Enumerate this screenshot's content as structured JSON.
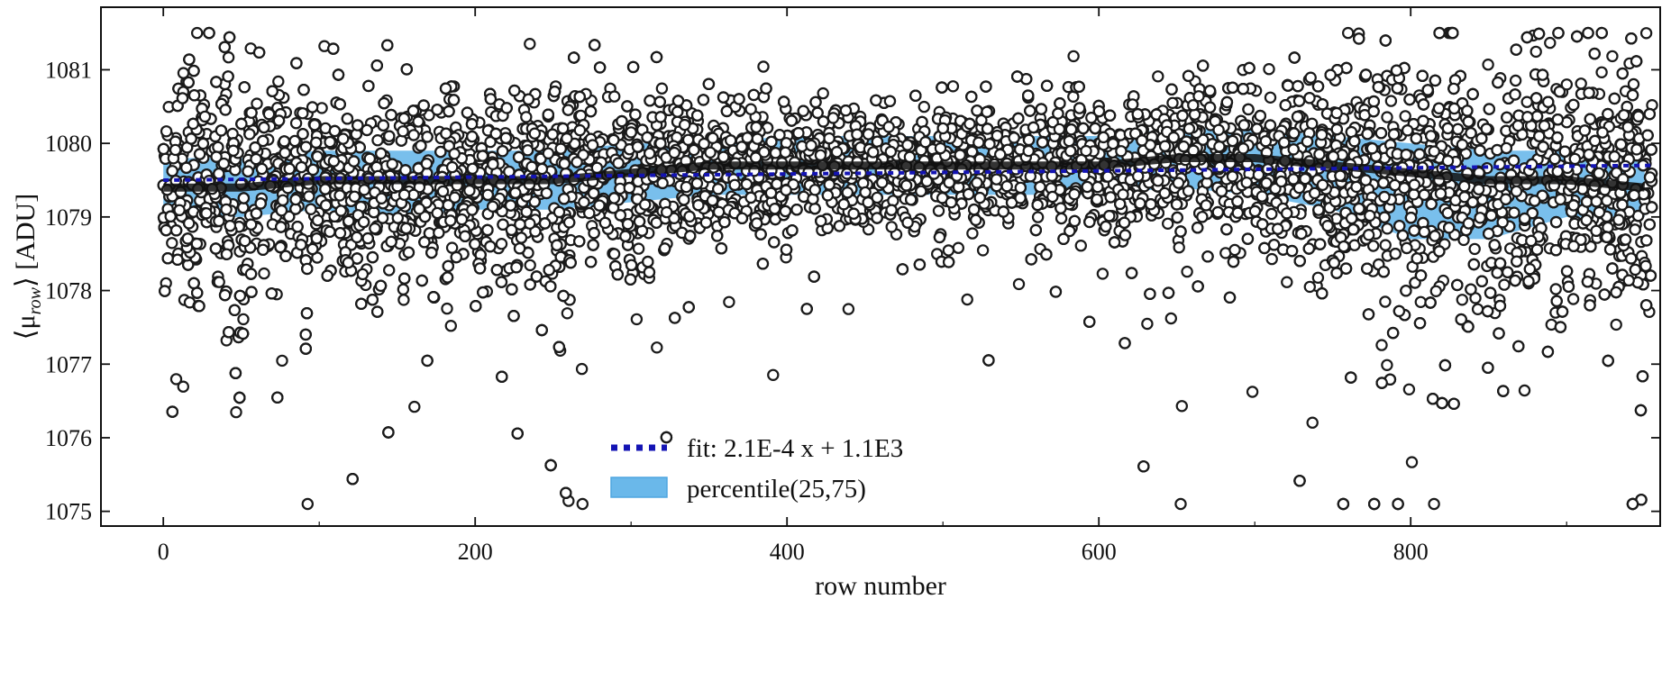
{
  "chart_data": {
    "type": "scatter",
    "title": "",
    "xlabel": "row number",
    "ylabel": "⟨μ",
    "ylabel_sub": "row",
    "ylabel_suffix": "⟩ [ADU]",
    "xlim": [
      -40,
      960
    ],
    "ylim": [
      1074.8,
      1081.85
    ],
    "x_ticks": [
      0,
      200,
      400,
      600,
      800
    ],
    "y_ticks": [
      1075,
      1076,
      1077,
      1078,
      1079,
      1080,
      1081
    ],
    "grid": false,
    "legend_position": "bottom-center",
    "fit": {
      "label": "fit: 2.1E-4 x + 1.1E3",
      "slope": 0.00021,
      "intercept": 1079.5,
      "color": "#1414b4"
    },
    "band": {
      "label": "percentile(25,75)",
      "color": "#6ab8ea",
      "x": [
        0,
        50,
        100,
        150,
        200,
        250,
        300,
        350,
        400,
        450,
        500,
        550,
        600,
        650,
        700,
        750,
        800,
        850,
        900,
        950
      ],
      "lower": [
        1079.0,
        1079.0,
        1079.1,
        1079.0,
        1079.1,
        1079.1,
        1079.2,
        1079.3,
        1079.3,
        1079.3,
        1079.3,
        1079.3,
        1079.3,
        1079.4,
        1079.3,
        1079.1,
        1078.7,
        1078.7,
        1079.0,
        1079.0
      ],
      "upper": [
        1079.8,
        1079.8,
        1079.9,
        1079.9,
        1079.9,
        1079.9,
        1080.0,
        1080.0,
        1080.1,
        1080.1,
        1080.1,
        1080.1,
        1080.1,
        1080.2,
        1080.2,
        1080.1,
        1080.0,
        1079.9,
        1079.9,
        1079.8
      ]
    },
    "median_series": {
      "x": [
        0,
        50,
        100,
        150,
        200,
        250,
        300,
        350,
        400,
        450,
        500,
        550,
        600,
        650,
        700,
        750,
        800,
        850,
        900,
        950
      ],
      "y": [
        1079.4,
        1079.4,
        1079.5,
        1079.5,
        1079.5,
        1079.5,
        1079.6,
        1079.7,
        1079.7,
        1079.7,
        1079.7,
        1079.7,
        1079.7,
        1079.8,
        1079.8,
        1079.7,
        1079.6,
        1079.5,
        1079.5,
        1079.4
      ]
    },
    "scatter": {
      "x_range": [
        0,
        955
      ],
      "n_points": 9500,
      "center_y": [
        1079.4,
        1079.4,
        1079.5,
        1079.5,
        1079.5,
        1079.5,
        1079.6,
        1079.7,
        1079.7,
        1079.7,
        1079.7,
        1079.7,
        1079.7,
        1079.8,
        1079.8,
        1079.7,
        1079.6,
        1079.5,
        1079.5,
        1079.4
      ],
      "spread_y": [
        1.3,
        1.4,
        1.1,
        1.2,
        1.1,
        1.3,
        1.1,
        0.8,
        0.7,
        0.7,
        0.7,
        0.7,
        0.8,
        0.9,
        1.0,
        1.2,
        1.5,
        1.5,
        1.4,
        1.6
      ],
      "marker_face": "#ffffff",
      "marker_edge": "#1a1a1a"
    }
  }
}
